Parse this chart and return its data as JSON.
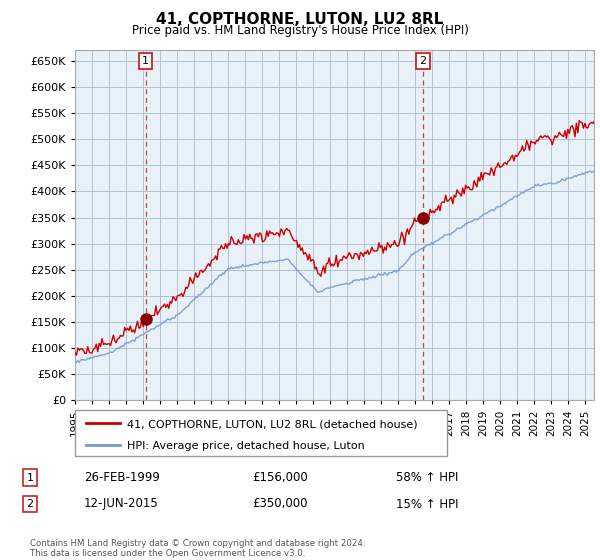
{
  "title": "41, COPTHORNE, LUTON, LU2 8RL",
  "subtitle": "Price paid vs. HM Land Registry's House Price Index (HPI)",
  "ylim": [
    0,
    670000
  ],
  "yticks": [
    0,
    50000,
    100000,
    150000,
    200000,
    250000,
    300000,
    350000,
    400000,
    450000,
    500000,
    550000,
    600000,
    650000
  ],
  "xlim_start": 1995.0,
  "xlim_end": 2025.5,
  "background_color": "#ffffff",
  "chart_bg_color": "#e8f0f8",
  "grid_color": "#aabbcc",
  "sale1_date": 1999.15,
  "sale1_price": 156000,
  "sale1_label": "1",
  "sale1_date_str": "26-FEB-1999",
  "sale1_price_str": "£156,000",
  "sale1_hpi_str": "58% ↑ HPI",
  "sale2_date": 2015.45,
  "sale2_price": 350000,
  "sale2_label": "2",
  "sale2_date_str": "12-JUN-2015",
  "sale2_price_str": "£350,000",
  "sale2_hpi_str": "15% ↑ HPI",
  "line1_color": "#cc0000",
  "line2_color": "#7799cc",
  "vline_color": "#cc4444",
  "marker_color": "#880000",
  "legend_label1": "41, COPTHORNE, LUTON, LU2 8RL (detached house)",
  "legend_label2": "HPI: Average price, detached house, Luton",
  "footer": "Contains HM Land Registry data © Crown copyright and database right 2024.\nThis data is licensed under the Open Government Licence v3.0."
}
